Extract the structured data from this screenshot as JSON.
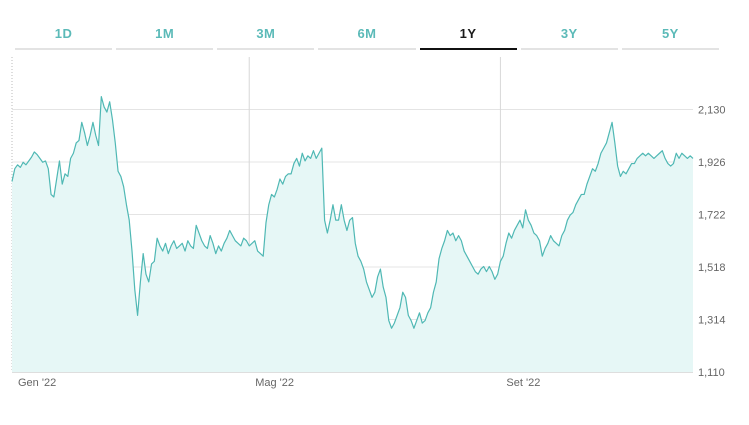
{
  "tabs": [
    {
      "label": "1D",
      "active": false
    },
    {
      "label": "1M",
      "active": false
    },
    {
      "label": "3M",
      "active": false
    },
    {
      "label": "6M",
      "active": false
    },
    {
      "label": "1Y",
      "active": true
    },
    {
      "label": "3Y",
      "active": false
    },
    {
      "label": "5Y",
      "active": false
    }
  ],
  "colors": {
    "accent": "#5bbab8",
    "line": "#4fb8b4",
    "fill": "#e6f7f6",
    "active_tab": "#111111"
  },
  "chart_data": {
    "type": "area",
    "title": "",
    "xlabel": "",
    "ylabel": "",
    "ylim": [
      1110,
      2334
    ],
    "y_ticks": [
      "2,130",
      "1,926",
      "1,722",
      "1,518",
      "1,314",
      "1,110"
    ],
    "y_tick_values": [
      2130,
      1926,
      1722,
      1518,
      1314,
      1110
    ],
    "x_ticks": [
      "Gen '22",
      "Mag '22",
      "Set '22"
    ],
    "x_tick_index": [
      0,
      85,
      175
    ],
    "grid": true,
    "legend": "none",
    "series": [
      {
        "values": [
          1850,
          1900,
          1915,
          1905,
          1925,
          1915,
          1930,
          1945,
          1965,
          1955,
          1940,
          1925,
          1930,
          1900,
          1800,
          1790,
          1860,
          1930,
          1840,
          1880,
          1870,
          1940,
          1960,
          2000,
          2010,
          2080,
          2040,
          1990,
          2030,
          2080,
          2030,
          1990,
          2180,
          2140,
          2120,
          2160,
          2090,
          2000,
          1890,
          1870,
          1830,
          1760,
          1700,
          1580,
          1430,
          1330,
          1460,
          1570,
          1490,
          1460,
          1530,
          1540,
          1630,
          1600,
          1580,
          1610,
          1570,
          1600,
          1620,
          1590,
          1600,
          1610,
          1580,
          1620,
          1600,
          1590,
          1680,
          1650,
          1620,
          1600,
          1590,
          1640,
          1610,
          1570,
          1600,
          1580,
          1610,
          1630,
          1660,
          1640,
          1620,
          1610,
          1600,
          1630,
          1620,
          1600,
          1610,
          1620,
          1580,
          1570,
          1560,
          1690,
          1760,
          1800,
          1790,
          1820,
          1860,
          1840,
          1870,
          1880,
          1880,
          1920,
          1940,
          1910,
          1960,
          1930,
          1950,
          1940,
          1970,
          1940,
          1960,
          1980,
          1700,
          1650,
          1700,
          1760,
          1700,
          1700,
          1760,
          1700,
          1660,
          1700,
          1710,
          1610,
          1560,
          1540,
          1510,
          1460,
          1430,
          1400,
          1420,
          1480,
          1510,
          1440,
          1400,
          1310,
          1280,
          1300,
          1330,
          1360,
          1420,
          1400,
          1330,
          1310,
          1280,
          1310,
          1340,
          1300,
          1310,
          1340,
          1360,
          1420,
          1460,
          1550,
          1590,
          1620,
          1660,
          1640,
          1650,
          1620,
          1640,
          1620,
          1580,
          1560,
          1540,
          1520,
          1500,
          1490,
          1510,
          1520,
          1500,
          1520,
          1500,
          1470,
          1490,
          1540,
          1560,
          1610,
          1650,
          1630,
          1660,
          1680,
          1700,
          1670,
          1740,
          1700,
          1680,
          1650,
          1640,
          1620,
          1560,
          1590,
          1610,
          1640,
          1620,
          1610,
          1600,
          1640,
          1660,
          1700,
          1720,
          1730,
          1760,
          1780,
          1800,
          1800,
          1840,
          1870,
          1900,
          1890,
          1920,
          1960,
          1980,
          2000,
          2040,
          2080,
          2000,
          1910,
          1870,
          1890,
          1880,
          1900,
          1920,
          1920,
          1940,
          1950,
          1960,
          1950,
          1960,
          1950,
          1940,
          1950,
          1960,
          1970,
          1940,
          1920,
          1910,
          1920,
          1960,
          1940,
          1960,
          1950,
          1940,
          1950,
          1940
        ]
      }
    ]
  }
}
